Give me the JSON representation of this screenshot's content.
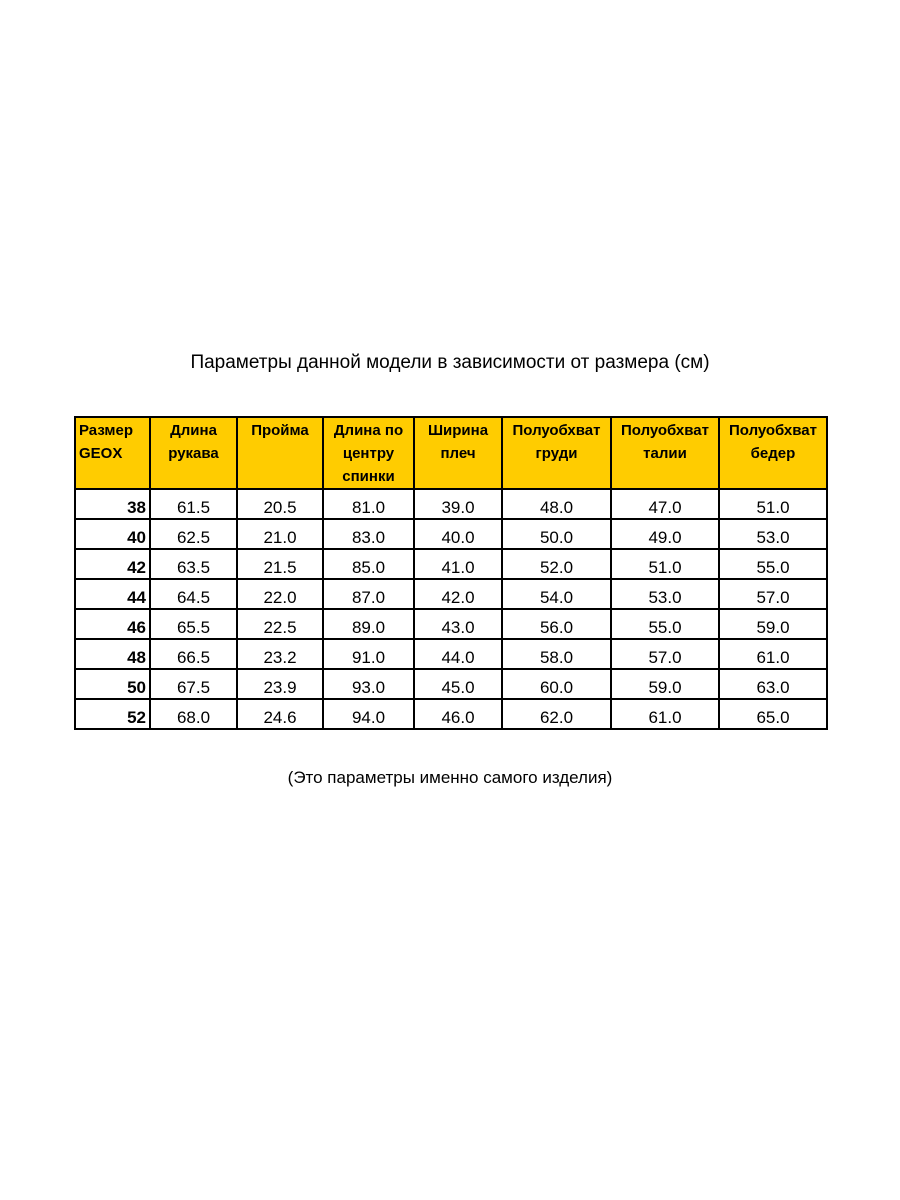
{
  "title": "Параметры данной модели в зависимости от размера (см)",
  "note": "(Это параметры именно самого изделия)",
  "colors": {
    "header_bg": "#FFCC00"
  },
  "table": {
    "headers": [
      "Размер GEOX",
      "Длина рукава",
      "Пройма",
      "Длина по центру спинки",
      "Ширина плеч",
      "Полуобхват груди",
      "Полуобхват талии",
      "Полуобхват бедер"
    ],
    "rows": [
      [
        "38",
        "61.5",
        "20.5",
        "81.0",
        "39.0",
        "48.0",
        "47.0",
        "51.0"
      ],
      [
        "40",
        "62.5",
        "21.0",
        "83.0",
        "40.0",
        "50.0",
        "49.0",
        "53.0"
      ],
      [
        "42",
        "63.5",
        "21.5",
        "85.0",
        "41.0",
        "52.0",
        "51.0",
        "55.0"
      ],
      [
        "44",
        "64.5",
        "22.0",
        "87.0",
        "42.0",
        "54.0",
        "53.0",
        "57.0"
      ],
      [
        "46",
        "65.5",
        "22.5",
        "89.0",
        "43.0",
        "56.0",
        "55.0",
        "59.0"
      ],
      [
        "48",
        "66.5",
        "23.2",
        "91.0",
        "44.0",
        "58.0",
        "57.0",
        "61.0"
      ],
      [
        "50",
        "67.5",
        "23.9",
        "93.0",
        "45.0",
        "60.0",
        "59.0",
        "63.0"
      ],
      [
        "52",
        "68.0",
        "24.6",
        "94.0",
        "46.0",
        "62.0",
        "61.0",
        "65.0"
      ]
    ]
  }
}
